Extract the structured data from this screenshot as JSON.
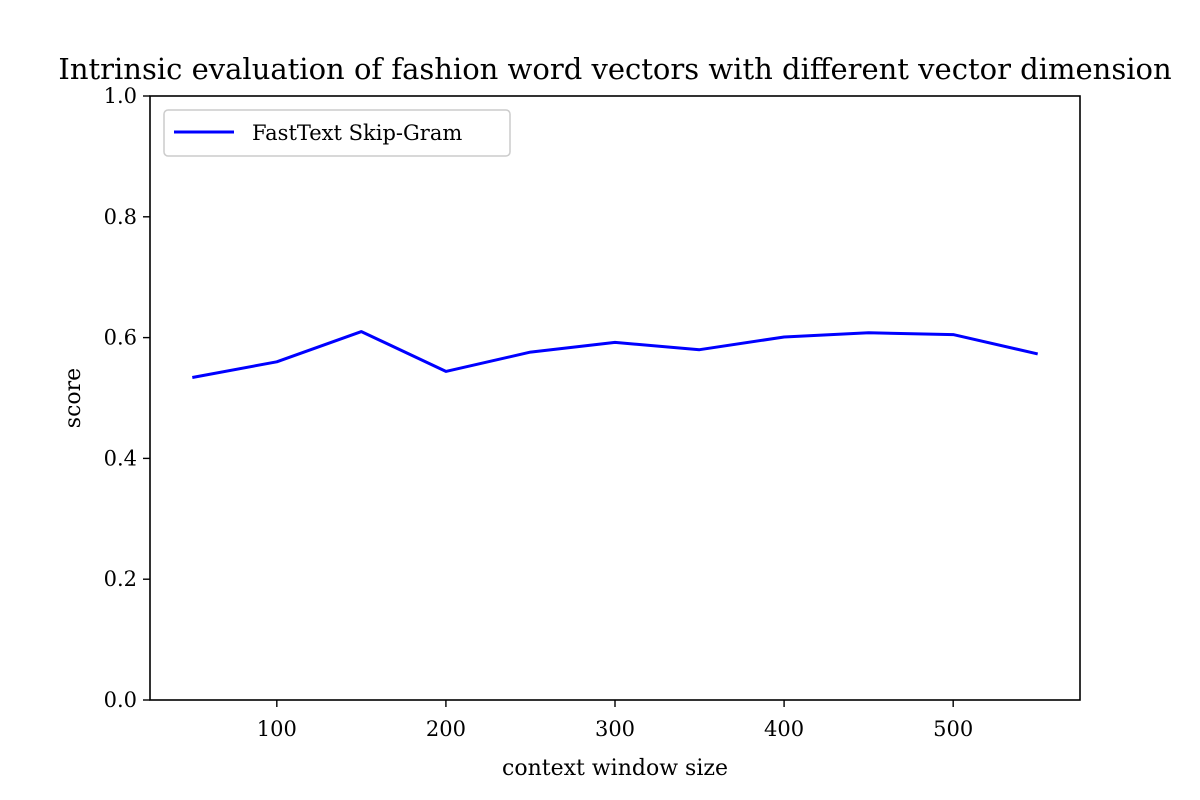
{
  "chart_data": {
    "type": "line",
    "title": "Intrinsic evaluation of fashion word vectors with different vector dimension",
    "xlabel": "context window size",
    "ylabel": "score",
    "xlim": [
      25,
      575
    ],
    "ylim": [
      0.0,
      1.0
    ],
    "xticks": [
      100,
      200,
      300,
      400,
      500
    ],
    "xtick_labels": [
      "100",
      "200",
      "300",
      "400",
      "500"
    ],
    "yticks": [
      0.0,
      0.2,
      0.4,
      0.6,
      0.8,
      1.0
    ],
    "ytick_labels": [
      "0.0",
      "0.2",
      "0.4",
      "0.6",
      "0.8",
      "1.0"
    ],
    "grid": false,
    "legend_position": "top-left",
    "series": [
      {
        "name": "FastText Skip-Gram",
        "color": "#0000ff",
        "x": [
          50,
          100,
          150,
          200,
          250,
          300,
          350,
          400,
          450,
          500,
          550
        ],
        "y": [
          0.534,
          0.56,
          0.61,
          0.544,
          0.576,
          0.592,
          0.58,
          0.601,
          0.608,
          0.605,
          0.573
        ]
      }
    ]
  }
}
